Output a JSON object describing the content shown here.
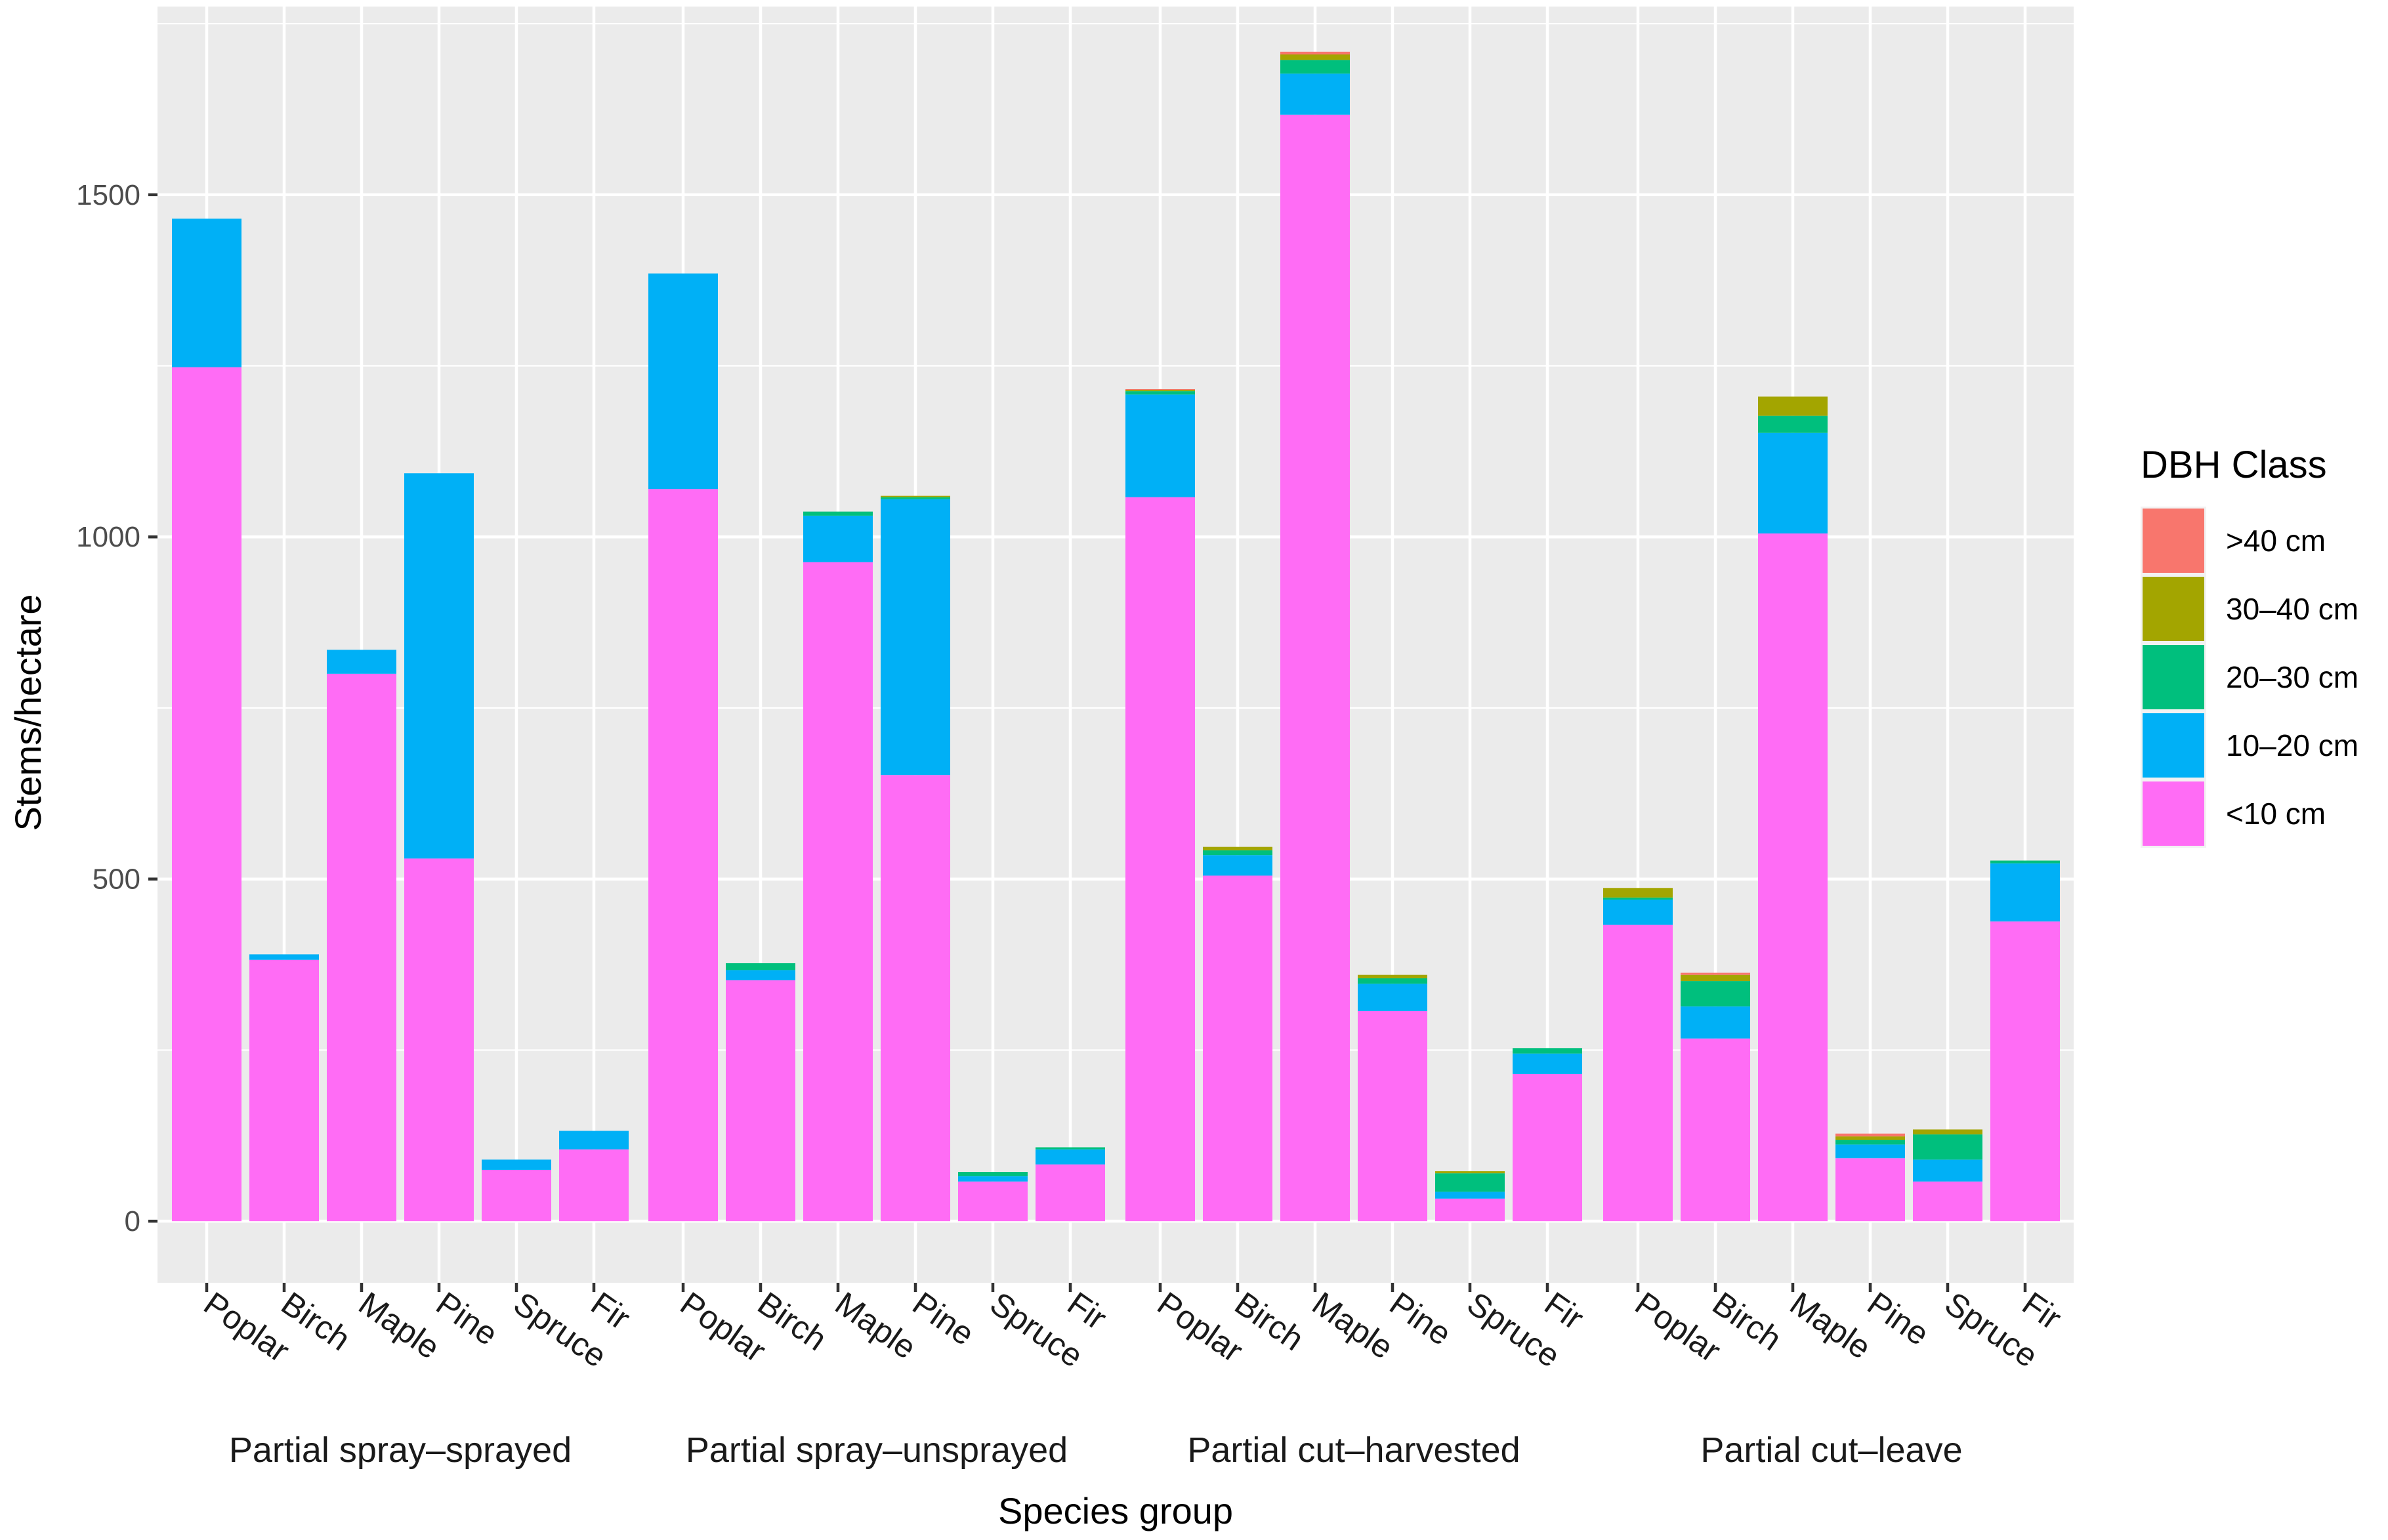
{
  "chart_data": {
    "type": "bar",
    "stacked": true,
    "xlabel": "Species group",
    "ylabel": "Stems/hectare",
    "ylim": [
      -90,
      1775
    ],
    "yticks": [
      0,
      500,
      1000,
      1500
    ],
    "ytick_labels": [
      "0",
      "500",
      "1000",
      "1500"
    ],
    "legend": {
      "title": "DBH Class",
      "placement": "right",
      "entries": [
        ">40 cm",
        "30–40 cm",
        "20–30 cm",
        "10–20 cm",
        "<10 cm"
      ]
    },
    "series_order_bottom_to_top": [
      "<10 cm",
      "10–20 cm",
      "20–30 cm",
      "30–40 cm",
      ">40 cm"
    ],
    "colors": {
      "<10 cm": "#FF6CF5",
      "10–20 cm": "#00B0F6",
      "20–30 cm": "#00BF7D",
      "30–40 cm": "#A3A500",
      ">40 cm": "#F8766D"
    },
    "groups": [
      {
        "name": "Partial spray–sprayed",
        "bars": [
          {
            "label": "Poplar",
            "values": [
              1248,
              217,
              0,
              0,
              0
            ]
          },
          {
            "label": "Birch",
            "values": [
              382,
              8,
              0,
              0,
              0
            ]
          },
          {
            "label": "Maple",
            "values": [
              800,
              35,
              0,
              0,
              0
            ]
          },
          {
            "label": "Pine",
            "values": [
              530,
              563,
              0,
              0,
              0
            ]
          },
          {
            "label": "Spruce",
            "values": [
              75,
              15,
              0,
              0,
              0
            ]
          },
          {
            "label": "Fir",
            "values": [
              105,
              27,
              0,
              0,
              0
            ]
          }
        ]
      },
      {
        "name": "Partial spray–unsprayed",
        "bars": [
          {
            "label": "Poplar",
            "values": [
              1070,
              315,
              0,
              0,
              0
            ]
          },
          {
            "label": "Birch",
            "values": [
              352,
              15,
              10,
              0,
              0
            ]
          },
          {
            "label": "Maple",
            "values": [
              963,
              68,
              6,
              0,
              0
            ]
          },
          {
            "label": "Pine",
            "values": [
              652,
              403,
              3,
              2,
              0
            ]
          },
          {
            "label": "Spruce",
            "values": [
              58,
              8,
              6,
              0,
              0
            ]
          },
          {
            "label": "Fir",
            "values": [
              83,
              22,
              3,
              0,
              0
            ]
          }
        ]
      },
      {
        "name": "Partial cut–harvested",
        "bars": [
          {
            "label": "Poplar",
            "values": [
              1058,
              150,
              5,
              2,
              1
            ]
          },
          {
            "label": "Birch",
            "values": [
              505,
              30,
              7,
              5,
              0
            ]
          },
          {
            "label": "Maple",
            "values": [
              1617,
              60,
              20,
              8,
              4
            ]
          },
          {
            "label": "Pine",
            "values": [
              307,
              40,
              8,
              5,
              0
            ]
          },
          {
            "label": "Spruce",
            "values": [
              33,
              10,
              27,
              3,
              0
            ]
          },
          {
            "label": "Fir",
            "values": [
              215,
              30,
              8,
              0,
              0
            ]
          }
        ]
      },
      {
        "name": "Partial cut–leave",
        "bars": [
          {
            "label": "Poplar",
            "values": [
              433,
              37,
              3,
              14,
              0
            ]
          },
          {
            "label": "Birch",
            "values": [
              267,
              47,
              37,
              9,
              3
            ]
          },
          {
            "label": "Maple",
            "values": [
              1005,
              147,
              25,
              28,
              0
            ]
          },
          {
            "label": "Pine",
            "values": [
              92,
              20,
              7,
              5,
              4
            ]
          },
          {
            "label": "Spruce",
            "values": [
              58,
              32,
              37,
              7,
              0
            ]
          },
          {
            "label": "Fir",
            "values": [
              438,
              85,
              4,
              0,
              0
            ]
          }
        ]
      }
    ]
  }
}
